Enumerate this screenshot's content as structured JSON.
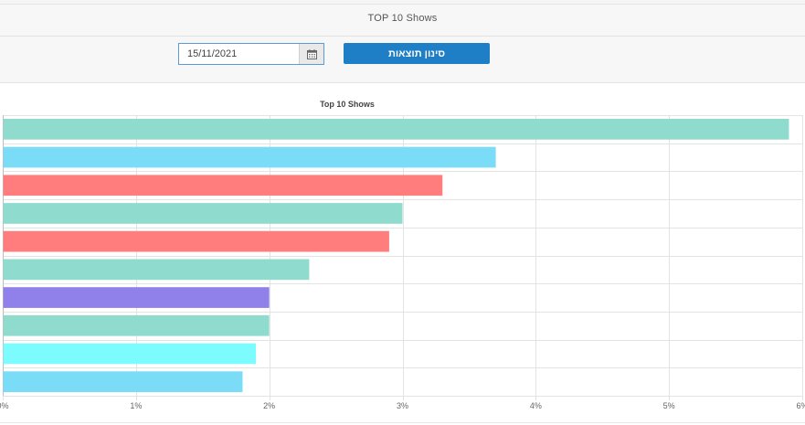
{
  "header": {
    "title": "TOP 10 Shows"
  },
  "filter": {
    "date_value": "15/11/2021",
    "button_label": "סינון תוצאות",
    "calendar_icon": "calendar-icon"
  },
  "chart_data": {
    "type": "bar",
    "orientation": "horizontal",
    "title": "Top 10 Shows",
    "xlabel": "",
    "ylabel": "",
    "categories": [
      "",
      "",
      "",
      "",
      "",
      "",
      "",
      "",
      "",
      ""
    ],
    "values": [
      5.9,
      3.7,
      3.3,
      3.0,
      2.9,
      2.3,
      2.0,
      2.0,
      1.9,
      1.8
    ],
    "colors": [
      "#8fdccf",
      "#7bdcf8",
      "#ff7d7d",
      "#8fdccf",
      "#ff7d7d",
      "#8fdccf",
      "#9080ea",
      "#8fdccf",
      "#7cfcff",
      "#7bdcf8"
    ],
    "xlim": [
      0,
      6
    ],
    "xticks": [
      0,
      1,
      2,
      3,
      4,
      5,
      6
    ],
    "xtick_labels": [
      "0%",
      "1%",
      "2%",
      "3%",
      "4%",
      "5%",
      "6%"
    ],
    "grid": true,
    "legend": "none"
  }
}
